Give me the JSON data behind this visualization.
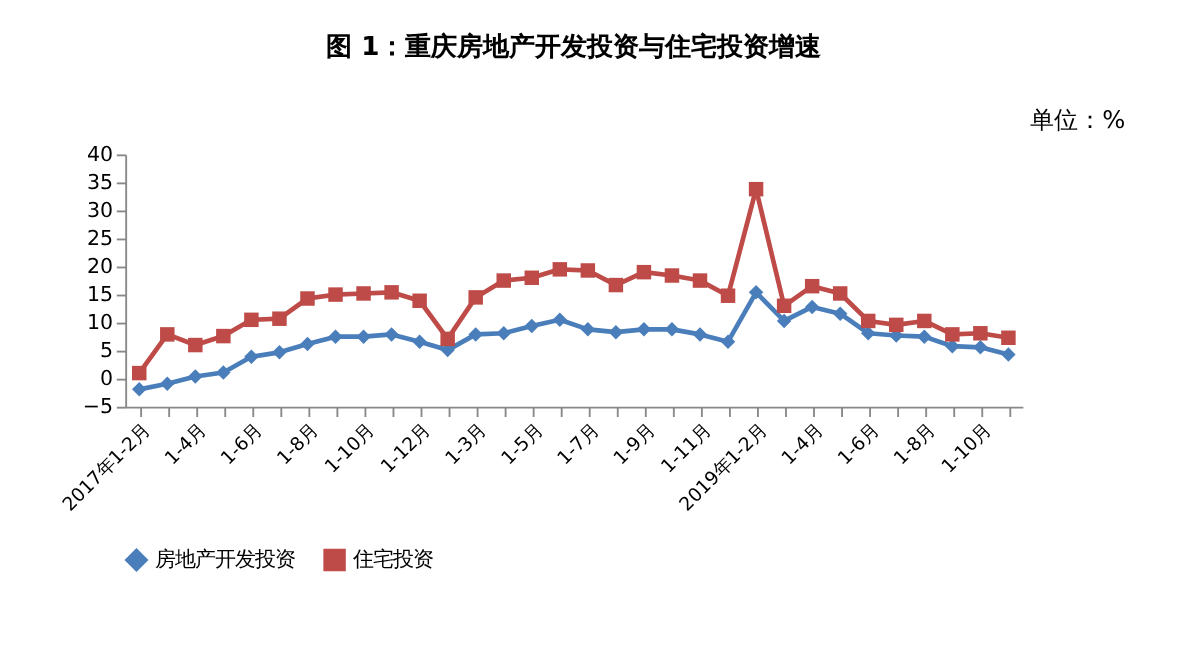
{
  "chart_data": {
    "type": "line",
    "title": "图 1：重庆房地产开发投资与住宅投资增速",
    "annotations": [
      "单位：%"
    ],
    "categories": [
      "2017年1-2月",
      null,
      "1-4月",
      null,
      "1-6月",
      null,
      "1-8月",
      null,
      "1-10月",
      null,
      "1-12月",
      null,
      "1-3月",
      null,
      "1-5月",
      null,
      "1-7月",
      null,
      "1-9月",
      null,
      "1-11月",
      null,
      "2019年1-2月",
      null,
      "1-4月",
      null,
      "1-6月",
      null,
      "1-8月",
      null,
      "1-10月",
      null
    ],
    "series": [
      {
        "name": "房地产开发投资",
        "color": "#4a7ebb",
        "marker": "diamond",
        "values": [
          -1.9,
          -0.9,
          0.4,
          1.1,
          3.9,
          4.7,
          6.2,
          7.5,
          7.5,
          7.9,
          6.6,
          5.1,
          7.9,
          8.1,
          9.4,
          10.5,
          8.8,
          8.3,
          8.8,
          8.8,
          7.9,
          6.6,
          15.4,
          10.3,
          12.8,
          11.6,
          8.1,
          7.7,
          7.5,
          5.8,
          5.6,
          4.3
        ]
      },
      {
        "name": "住宅投资",
        "color": "#be4b48",
        "marker": "square",
        "values": [
          1.0,
          7.9,
          6.0,
          7.6,
          10.5,
          10.7,
          14.3,
          15.0,
          15.2,
          15.4,
          13.9,
          7.1,
          14.5,
          17.5,
          18.0,
          19.5,
          19.3,
          16.7,
          19.0,
          18.4,
          17.5,
          14.8,
          33.8,
          13.0,
          16.5,
          15.2,
          10.3,
          9.6,
          10.3,
          7.9,
          8.1,
          7.3
        ]
      }
    ],
    "ylim": [
      -5,
      40
    ],
    "yticks": [
      -5,
      0,
      5,
      10,
      15,
      20,
      25,
      30,
      35,
      40
    ],
    "grid": false,
    "legend": "bottom",
    "line_style": "solid"
  }
}
